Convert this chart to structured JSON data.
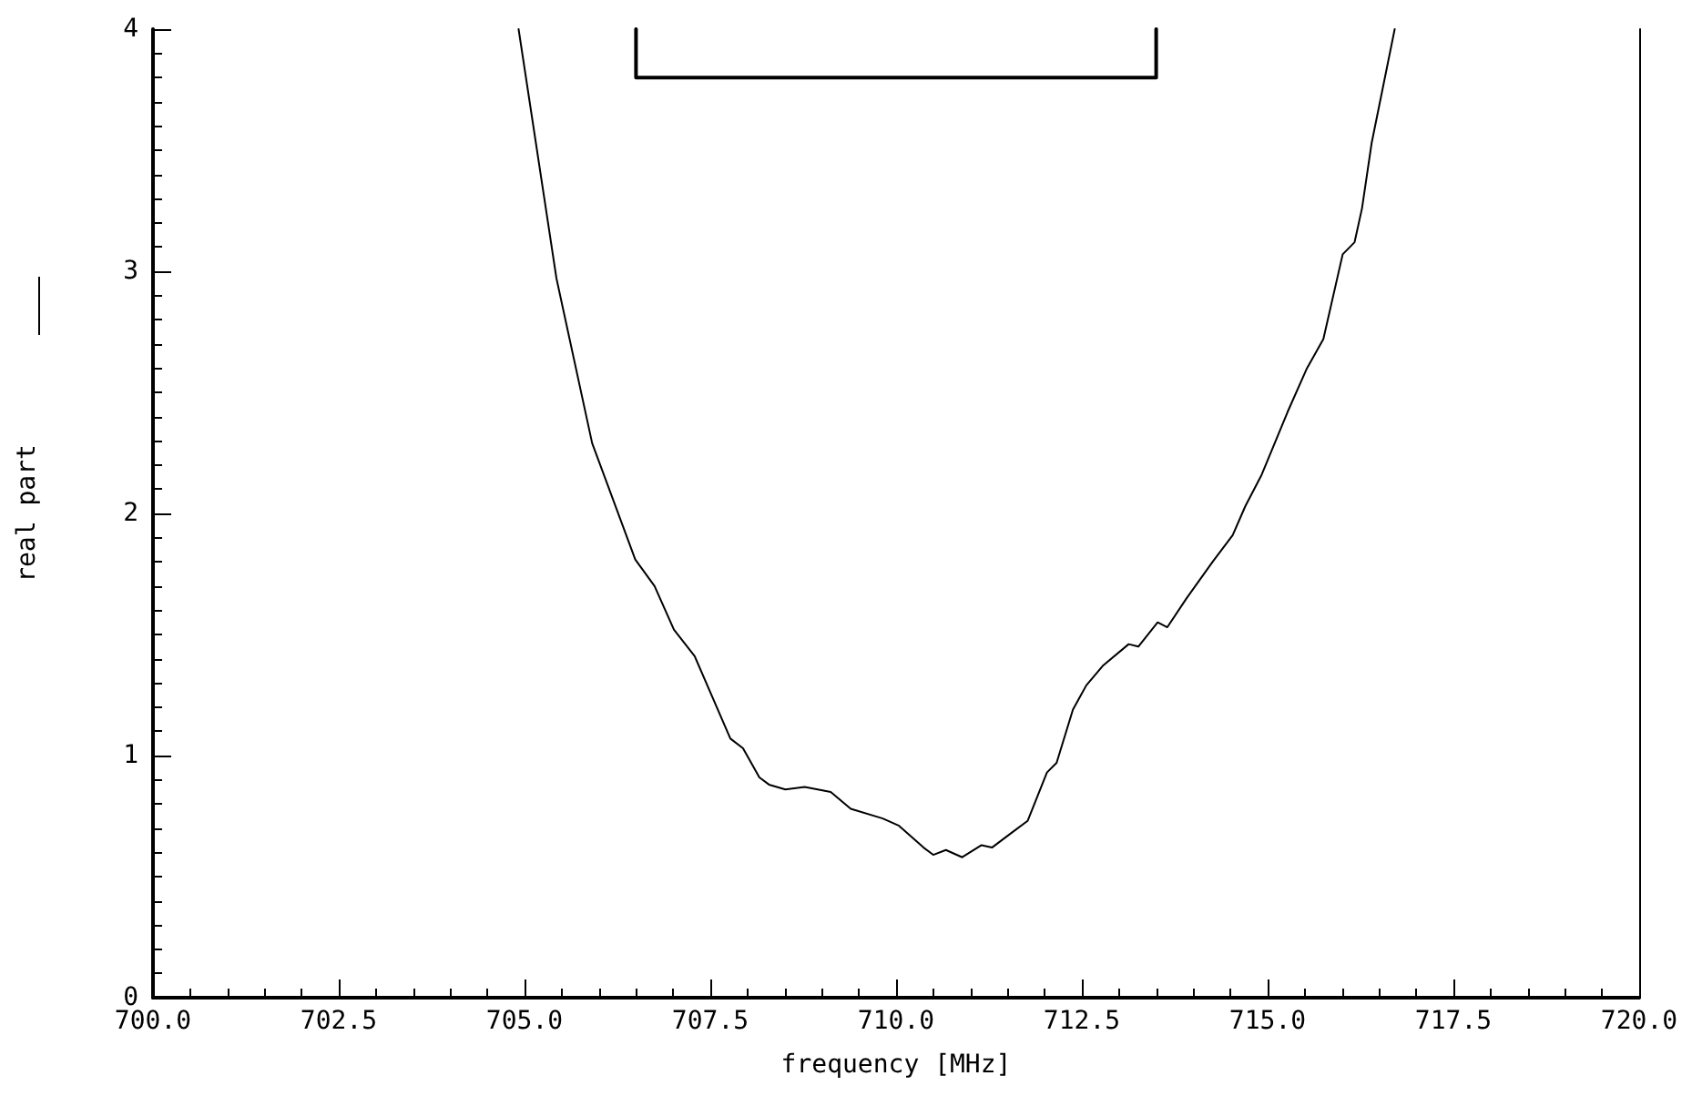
{
  "chart_data": {
    "type": "line",
    "xlabel": "frequency [MHz]",
    "ylabel": "real part",
    "xlim": [
      700,
      720
    ],
    "xticks": [
      {
        "value": 700,
        "label": "700.0"
      },
      {
        "value": 702.5,
        "label": "702.5"
      },
      {
        "value": 705,
        "label": "705.0"
      },
      {
        "value": 707.5,
        "label": "707.5"
      },
      {
        "value": 710,
        "label": "710.0"
      },
      {
        "value": 712.5,
        "label": "712.5"
      },
      {
        "value": 715,
        "label": "715.0"
      },
      {
        "value": 717.5,
        "label": "717.5"
      },
      {
        "value": 720,
        "label": "720.0"
      }
    ],
    "ylim": [
      0,
      4
    ],
    "yticks": [
      0,
      1,
      2,
      3,
      4
    ],
    "grid": false,
    "marker": "none",
    "line_style": "solid",
    "series": [
      {
        "color": "#000000",
        "x": [
          704.92,
          705.43,
          705.91,
          706.49,
          706.75,
          707.01,
          707.29,
          707.77,
          707.94,
          708.16,
          708.29,
          708.51,
          708.77,
          709.12,
          709.39,
          709.82,
          710.04,
          710.37,
          710.5,
          710.67,
          710.89,
          711.15,
          711.29,
          711.55,
          711.77,
          712.03,
          712.16,
          712.38,
          712.56,
          712.78,
          713.13,
          713.26,
          713.52,
          713.65,
          713.91,
          714.26,
          714.53,
          714.7,
          714.92,
          715.27,
          715.53,
          715.75,
          716.01,
          716.17,
          716.27,
          716.4,
          716.71
        ],
        "values": [
          4,
          2.97,
          2.29,
          1.81,
          1.7,
          1.52,
          1.41,
          1.07,
          1.03,
          0.91,
          0.88,
          0.86,
          0.87,
          0.85,
          0.78,
          0.74,
          0.71,
          0.62,
          0.59,
          0.61,
          0.58,
          0.63,
          0.62,
          0.68,
          0.73,
          0.93,
          0.97,
          1.19,
          1.29,
          1.37,
          1.46,
          1.45,
          1.55,
          1.53,
          1.65,
          1.8,
          1.91,
          2.03,
          2.16,
          2.42,
          2.6,
          2.72,
          3.07,
          3.12,
          3.26,
          3.53,
          4
        ]
      },
      {
        "color": "#000000",
        "x": [
          706.5,
          706.5,
          713.5,
          713.5
        ],
        "values": [
          4,
          3.8,
          3.8,
          4
        ]
      }
    ]
  }
}
